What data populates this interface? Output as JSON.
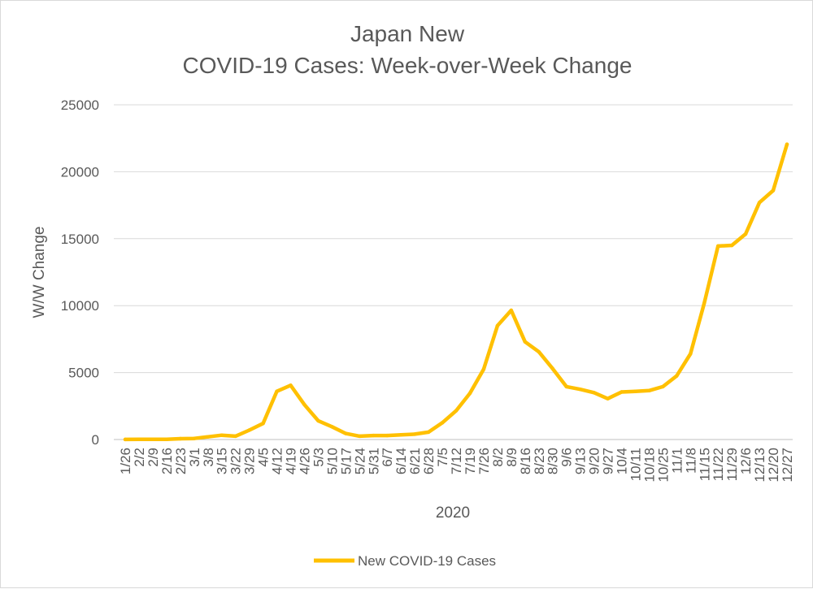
{
  "chart_data": {
    "type": "line",
    "title_lines": [
      "Japan New",
      "COVID-19 Cases: Week-over-Week Change"
    ],
    "xlabel": "2020",
    "ylabel": "W/W Change",
    "ylim": [
      0,
      25000
    ],
    "yticks": [
      0,
      5000,
      10000,
      15000,
      20000,
      25000
    ],
    "grid": true,
    "legend_position": "bottom",
    "categories": [
      "1/26",
      "2/2",
      "2/9",
      "2/16",
      "2/23",
      "3/1",
      "3/8",
      "3/15",
      "3/22",
      "3/29",
      "4/5",
      "4/12",
      "4/19",
      "4/26",
      "5/3",
      "5/10",
      "5/17",
      "5/24",
      "5/31",
      "6/7",
      "6/14",
      "6/21",
      "6/28",
      "7/5",
      "7/12",
      "7/19",
      "7/26",
      "8/2",
      "8/9",
      "8/16",
      "8/23",
      "8/30",
      "9/6",
      "9/13",
      "9/20",
      "9/27",
      "10/4",
      "10/11",
      "10/18",
      "10/25",
      "11/1",
      "11/8",
      "11/15",
      "11/22",
      "11/29",
      "12/6",
      "12/13",
      "12/20",
      "12/27"
    ],
    "series": [
      {
        "name": "New COVID-19 Cases",
        "color": "#FFC000",
        "values": [
          5,
          10,
          15,
          20,
          60,
          80,
          200,
          320,
          250,
          700,
          1200,
          3600,
          4050,
          2600,
          1400,
          950,
          450,
          250,
          300,
          300,
          350,
          400,
          550,
          1250,
          2150,
          3450,
          5250,
          8500,
          9650,
          7300,
          6550,
          5300,
          3950,
          3750,
          3500,
          3050,
          3550,
          3600,
          3650,
          3950,
          4750,
          6400,
          10200,
          14450,
          14500,
          15350,
          17700,
          18600,
          22050
        ]
      }
    ]
  }
}
